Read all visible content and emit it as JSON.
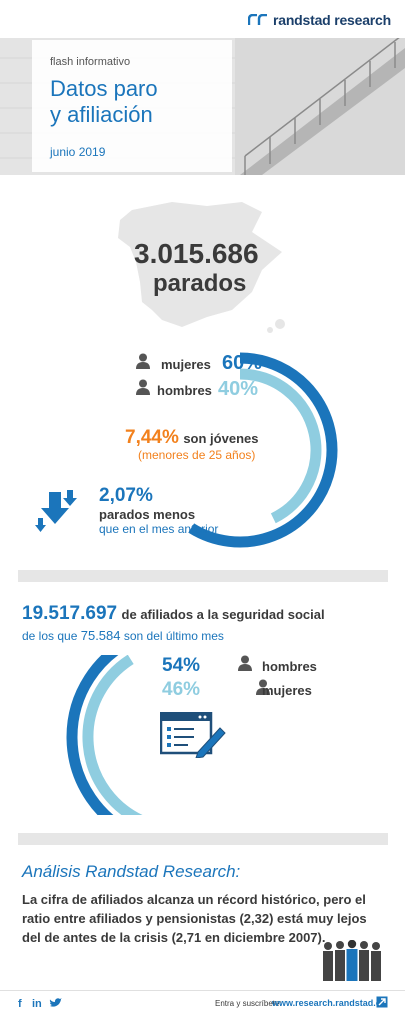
{
  "header": {
    "brand": "randstad research",
    "flash_label": "flash informativo",
    "title_line1": "Datos paro",
    "title_line2": "y afiliación",
    "date": "junio 2019"
  },
  "unemployment": {
    "total": "3.015.686",
    "total_label": "parados",
    "women_label": "mujeres",
    "women_pct": "60%",
    "men_label": "hombres",
    "men_pct": "40%",
    "youth_pct": "7,44%",
    "youth_label": "son jóvenes",
    "youth_note": "(menores de 25 años)",
    "decrease_pct": "2,07%",
    "decrease_label1": "parados menos",
    "decrease_label2": "que en el mes anterior",
    "women_share": 0.6,
    "men_share": 0.4
  },
  "affiliation": {
    "total": "19.517.697",
    "total_label": "de afiliados a la seguridad social",
    "recent_prefix": "de los que",
    "recent_value": "75.584",
    "recent_suffix": "son del último mes",
    "men_pct": "54%",
    "women_pct": "46%",
    "men_label": "hombres",
    "women_label": "mujeres",
    "men_share": 0.54,
    "women_share": 0.46
  },
  "analysis": {
    "heading": "Análisis Randstad Research:",
    "body": "La cifra de afiliados alcanza un récord histórico, pero el ratio entre afiliados y pensionistas (2,32) está muy lejos del de antes de la crisis (2,71 en diciembre 2007)."
  },
  "footer": {
    "subscribe_label": "Entra y suscríbete:",
    "url": "www.research.randstad.es"
  },
  "colors": {
    "blue": "#1b75bb",
    "light_blue": "#8fcde0",
    "orange": "#f2811d",
    "dark": "#3a3a3a"
  }
}
